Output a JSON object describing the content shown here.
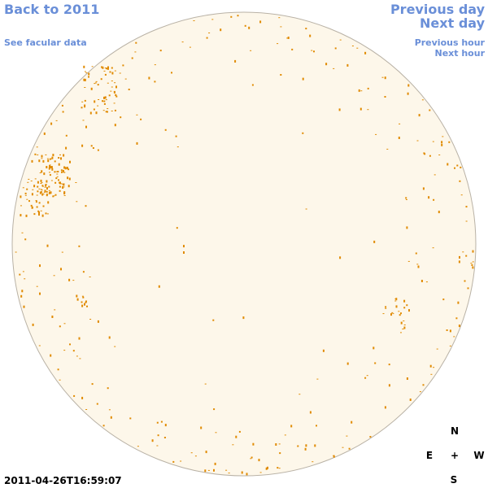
{
  "nav": {
    "back": "Back to 2011",
    "facular": "See facular data",
    "previous_day": "Previous day",
    "next_day": "Next day",
    "previous_hour": "Previous hour",
    "next_hour": "Next hour"
  },
  "timestamp": "2011-04-26T16:59:07",
  "compass": {
    "north": "N",
    "east": "E",
    "center": "+",
    "west": "W",
    "south": "S"
  }
}
